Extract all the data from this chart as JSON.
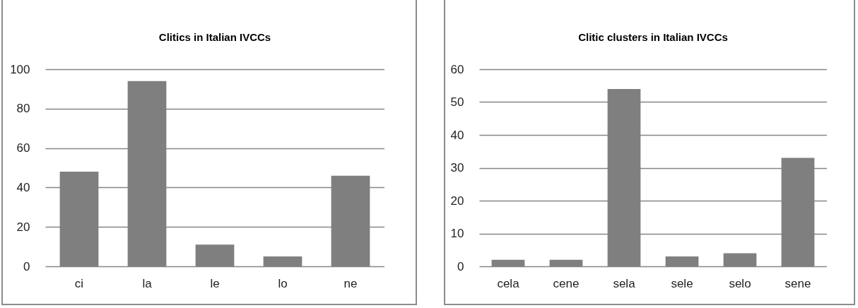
{
  "chart_data": [
    {
      "type": "bar",
      "title": "Clitics in Italian IVCCs",
      "categories": [
        "ci",
        "la",
        "le",
        "lo",
        "ne"
      ],
      "values": [
        48,
        94,
        11,
        5,
        46
      ],
      "color": "#7f7f7f",
      "ylim": [
        0,
        100
      ],
      "yticks": [
        0,
        20,
        40,
        60,
        80,
        100
      ],
      "grid": "y"
    },
    {
      "type": "bar",
      "title": "Clitic clusters in Italian IVCCs",
      "categories": [
        "cela",
        "cene",
        "sela",
        "sele",
        "selo",
        "sene"
      ],
      "values": [
        2,
        2,
        54,
        3,
        4,
        33
      ],
      "color": "#7f7f7f",
      "ylim": [
        0,
        60
      ],
      "yticks": [
        0,
        10,
        20,
        30,
        40,
        50,
        60
      ],
      "grid": "y"
    }
  ]
}
